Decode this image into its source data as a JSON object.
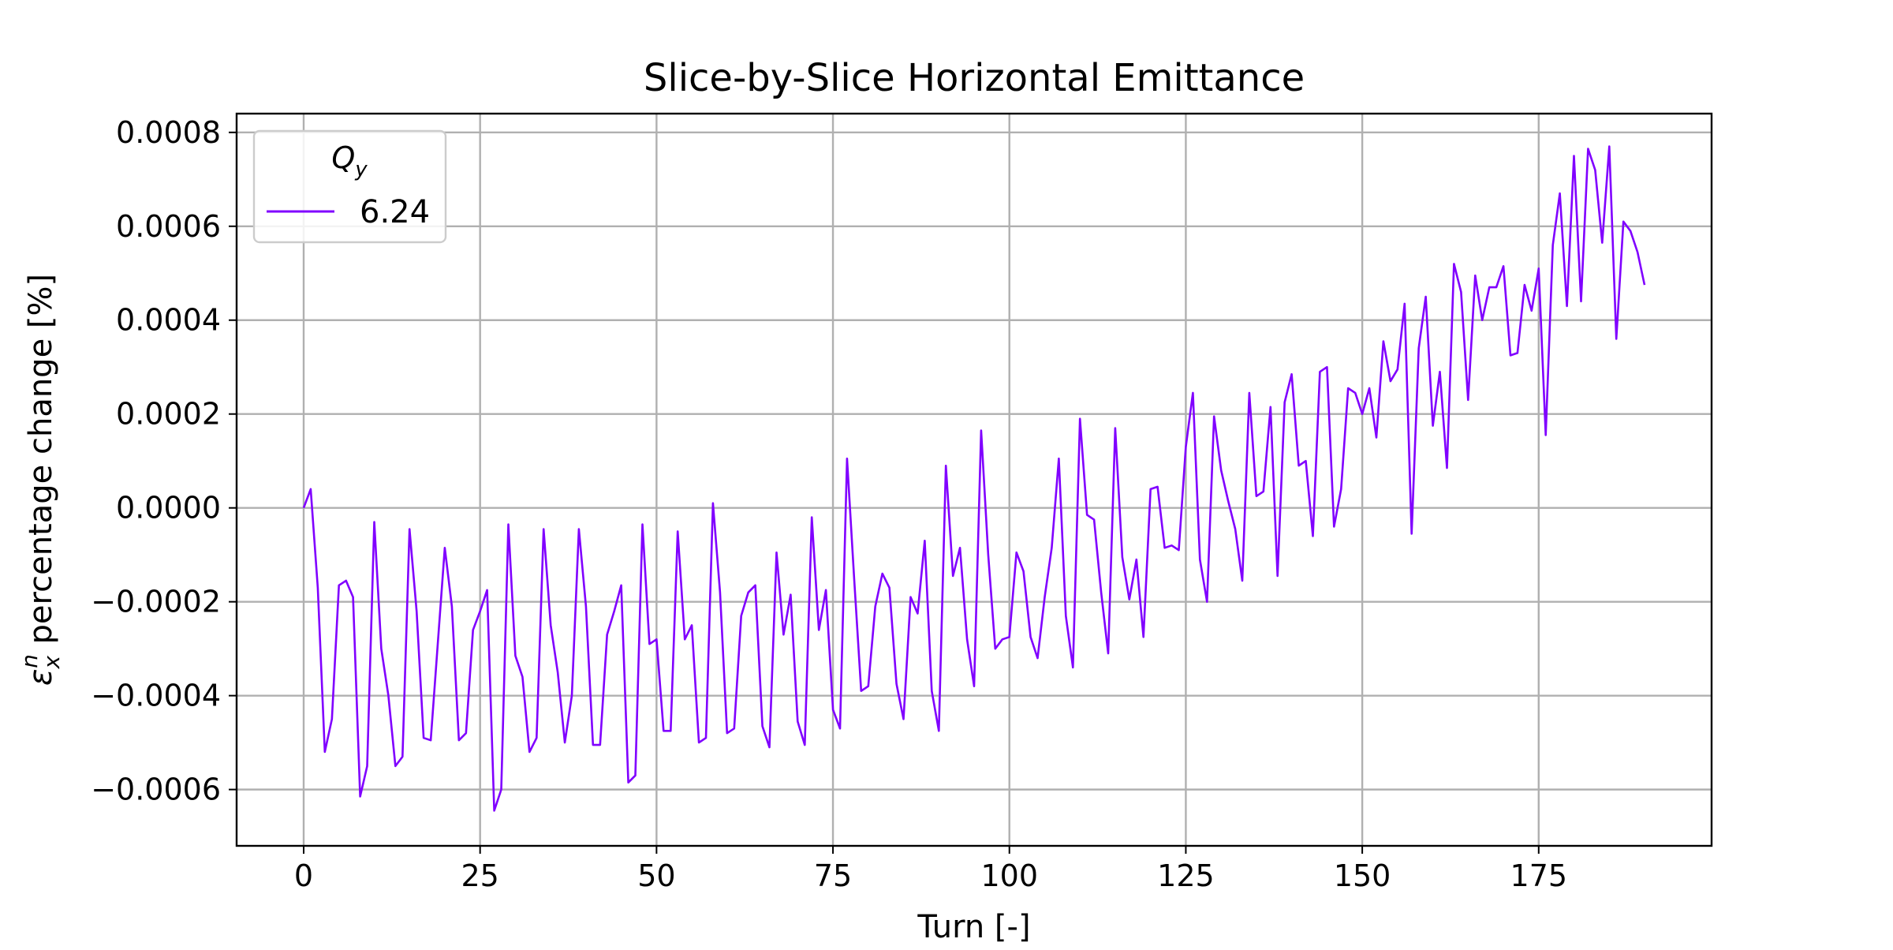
{
  "chart_data": {
    "type": "line",
    "title": "Slice-by-Slice Horizontal Emittance",
    "xlabel": "Turn [-]",
    "ylabel_parts": {
      "symbol": "ε",
      "sub": "x",
      "sup": "n",
      "text": " percentage change [%]"
    },
    "xlim": [
      -9.5,
      199.5
    ],
    "ylim": [
      -0.00072,
      0.00084
    ],
    "xticks": [
      0,
      25,
      50,
      75,
      100,
      125,
      150,
      175
    ],
    "xtick_labels": [
      "0",
      "25",
      "50",
      "75",
      "100",
      "125",
      "150",
      "175"
    ],
    "yticks": [
      -0.0006,
      -0.0004,
      -0.0002,
      0.0,
      0.0002,
      0.0004,
      0.0006,
      0.0008
    ],
    "ytick_labels": [
      "−0.0006",
      "−0.0004",
      "−0.0002",
      "0.0000",
      "0.0002",
      "0.0004",
      "0.0006",
      "0.0008"
    ],
    "grid": true,
    "legend": {
      "placement": "upper left",
      "title_parts": {
        "symbol": "Q",
        "sub": "y"
      },
      "entries": [
        "6.24"
      ]
    },
    "series": [
      {
        "name": "6.24",
        "color": "#8000ff",
        "x_start": 0,
        "x_step": 1,
        "values": [
          0.0,
          4e-05,
          -0.00017,
          -0.00052,
          -0.00045,
          -0.000165,
          -0.000155,
          -0.00019,
          -0.000615,
          -0.00055,
          -3e-05,
          -0.0003,
          -0.0004,
          -0.00055,
          -0.00053,
          -4.5e-05,
          -0.00022,
          -0.00049,
          -0.000495,
          -0.00029,
          -8.5e-05,
          -0.00021,
          -0.000495,
          -0.00048,
          -0.00026,
          -0.00022,
          -0.000175,
          -0.000645,
          -0.0006,
          -3.5e-05,
          -0.000315,
          -0.00036,
          -0.00052,
          -0.00049,
          -4.5e-05,
          -0.00025,
          -0.00035,
          -0.0005,
          -0.0004,
          -4.5e-05,
          -0.00021,
          -0.000505,
          -0.000505,
          -0.00027,
          -0.00022,
          -0.000165,
          -0.000585,
          -0.00057,
          -3.5e-05,
          -0.00029,
          -0.00028,
          -0.000475,
          -0.000475,
          -5e-05,
          -0.00028,
          -0.00025,
          -0.0005,
          -0.00049,
          1e-05,
          -0.00018,
          -0.00048,
          -0.00047,
          -0.00023,
          -0.00018,
          -0.000165,
          -0.000465,
          -0.00051,
          -9.5e-05,
          -0.00027,
          -0.000185,
          -0.000455,
          -0.000505,
          -2e-05,
          -0.00026,
          -0.000175,
          -0.00043,
          -0.00047,
          0.000105,
          -0.00015,
          -0.00039,
          -0.00038,
          -0.00021,
          -0.00014,
          -0.00017,
          -0.000375,
          -0.00045,
          -0.00019,
          -0.000225,
          -7e-05,
          -0.00039,
          -0.000475,
          9e-05,
          -0.000145,
          -8.5e-05,
          -0.00028,
          -0.00038,
          0.000165,
          -0.0001,
          -0.0003,
          -0.00028,
          -0.000275,
          -9.5e-05,
          -0.000135,
          -0.000275,
          -0.00032,
          -0.00019,
          -8.5e-05,
          0.000105,
          -0.00023,
          -0.00034,
          0.00019,
          -1.5e-05,
          -2.5e-05,
          -0.00018,
          -0.00031,
          0.00017,
          -0.000105,
          -0.000195,
          -0.00011,
          -0.000275,
          4e-05,
          4.5e-05,
          -8.5e-05,
          -8e-05,
          -9e-05,
          0.00013,
          0.000245,
          -0.00011,
          -0.0002,
          0.000195,
          8e-05,
          1.5e-05,
          -4.5e-05,
          -0.000155,
          0.000245,
          2.5e-05,
          3.5e-05,
          0.000215,
          -0.000145,
          0.000225,
          0.000285,
          9e-05,
          0.0001,
          -6e-05,
          0.00029,
          0.0003,
          -4e-05,
          4e-05,
          0.000255,
          0.000245,
          0.0002,
          0.000255,
          0.00015,
          0.000355,
          0.00027,
          0.000295,
          0.000435,
          -5.5e-05,
          0.00034,
          0.00045,
          0.000175,
          0.00029,
          8.5e-05,
          0.00052,
          0.00046,
          0.00023,
          0.000495,
          0.0004,
          0.00047,
          0.00047,
          0.000515,
          0.000325,
          0.00033,
          0.000475,
          0.00042,
          0.00051,
          0.000155,
          0.00056,
          0.00067,
          0.00043,
          0.00075,
          0.00044,
          0.000765,
          0.00072,
          0.000565,
          0.00077,
          0.00036,
          0.00061,
          0.00059,
          0.000545,
          0.000475
        ]
      }
    ]
  }
}
